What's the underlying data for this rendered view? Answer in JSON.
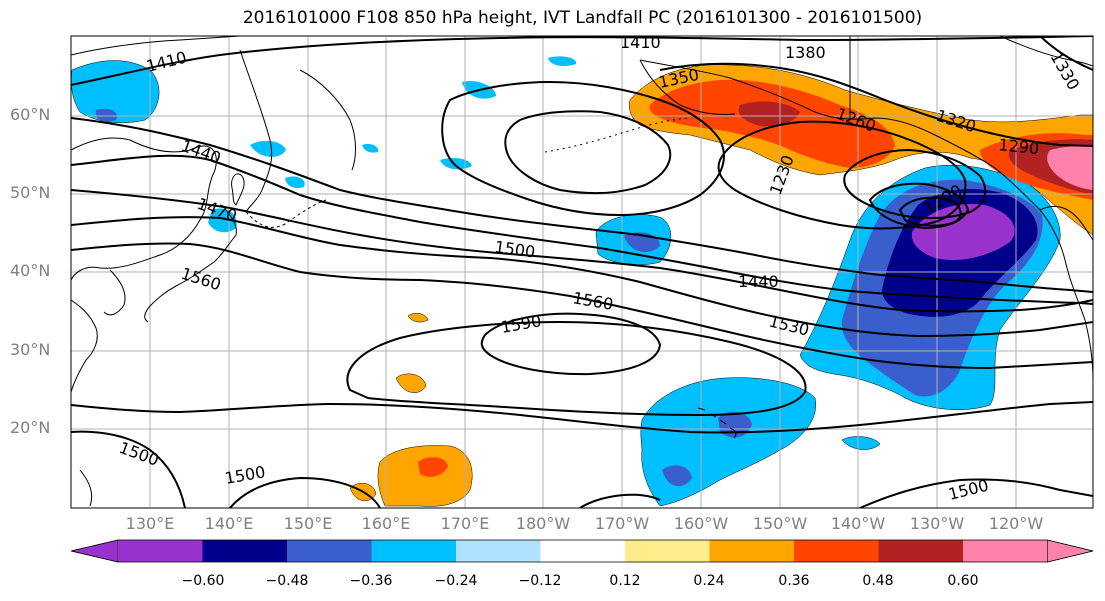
{
  "title": "2016101000 F108 850 hPa height, IVT Landfall PC (2016101300 - 2016101500)",
  "lat_labels": [
    "60°N",
    "50°N",
    "40°N",
    "30°N",
    "20°N"
  ],
  "lon_labels": [
    "130°E",
    "140°E",
    "150°E",
    "160°E",
    "170°E",
    "180°W",
    "170°W",
    "160°W",
    "150°W",
    "140°W",
    "130°W",
    "120°W"
  ],
  "contour_labels": [
    "1410",
    "1410",
    "1380",
    "1350",
    "1320",
    "1290",
    "1260",
    "1230",
    "1200",
    "1330",
    "1440",
    "1470",
    "1500",
    "1560",
    "1560",
    "1590",
    "1530",
    "1440",
    "1500",
    "1500",
    "1500"
  ],
  "colorbar": {
    "tick_labels": [
      "−0.60",
      "−0.48",
      "−0.36",
      "−0.24",
      "−0.12",
      "0.12",
      "0.24",
      "0.36",
      "0.48",
      "0.60"
    ],
    "colors": [
      "#9932CC",
      "#00008B",
      "#3A5FCD",
      "#00BFFF",
      "#B0E2FF",
      "#FFFFFF",
      "#FFEC8B",
      "#FFA500",
      "#FF4500",
      "#B22222",
      "#FF82AB"
    ]
  }
}
